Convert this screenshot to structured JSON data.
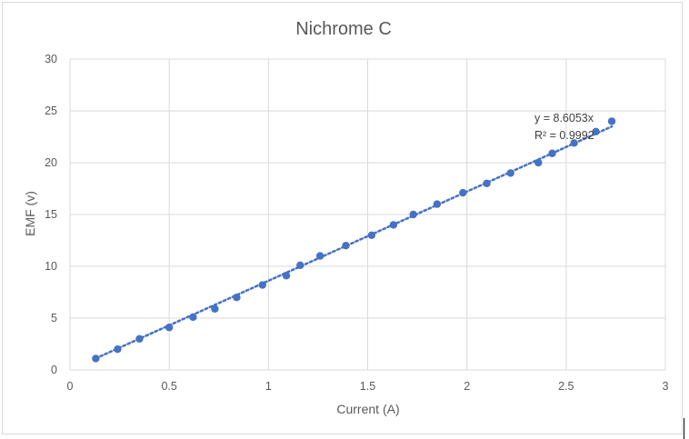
{
  "chart_data": {
    "type": "scatter",
    "title": "Nichrome C",
    "xlabel": "Current (A)",
    "ylabel": "EMF (v)",
    "xlim": [
      0,
      3
    ],
    "ylim": [
      0,
      30
    ],
    "xticks": [
      "0",
      "0.5",
      "1",
      "1.5",
      "2",
      "2.5",
      "3"
    ],
    "yticks": [
      "0",
      "5",
      "10",
      "15",
      "20",
      "25",
      "30"
    ],
    "grid": true,
    "marker_color": "#4472c4",
    "series": [
      {
        "x": [
          0.13,
          0.24,
          0.35,
          0.5,
          0.62,
          0.73,
          0.84,
          0.97,
          1.09,
          1.16,
          1.26,
          1.39,
          1.52,
          1.63,
          1.73,
          1.85,
          1.98,
          2.1,
          2.22,
          2.36,
          2.43,
          2.54,
          2.65,
          2.73
        ],
        "y": [
          1.1,
          2.0,
          3.0,
          4.1,
          5.1,
          5.9,
          7.0,
          8.2,
          9.1,
          10.1,
          11.0,
          12.0,
          13.0,
          14.0,
          15.0,
          16.0,
          17.1,
          18.0,
          19.0,
          20.0,
          20.9,
          21.9,
          23.0,
          24.0
        ]
      }
    ],
    "trendline": {
      "type": "linear-through-origin",
      "slope": 8.6053,
      "x_range": [
        0.13,
        2.73
      ],
      "style": "dotted",
      "equation": "y = 8.6053x",
      "r_squared": "R² = 0.9992"
    }
  }
}
